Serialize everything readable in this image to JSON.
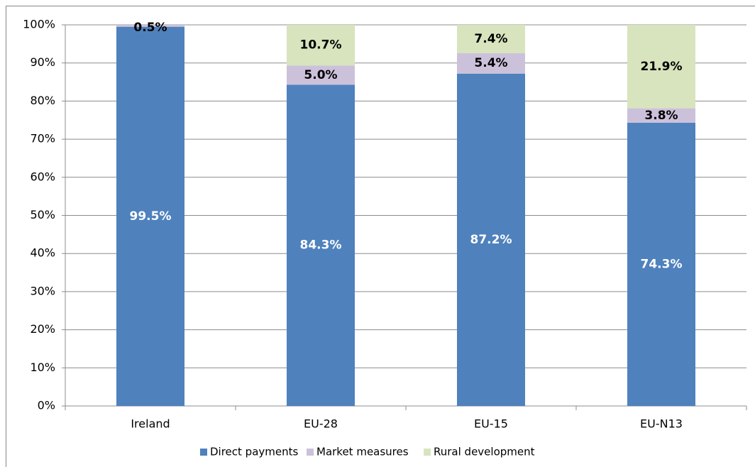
{
  "chart_data": {
    "type": "stacked_bar",
    "categories": [
      "Ireland",
      "EU-28",
      "EU-15",
      "EU-N13"
    ],
    "series": [
      {
        "name": "Direct payments",
        "color": "#4f81bd",
        "label_color": "#ffffff",
        "values": [
          99.5,
          84.3,
          87.2,
          74.3
        ],
        "value_labels": [
          "99.5%",
          "84.3%",
          "87.2%",
          "74.3%"
        ]
      },
      {
        "name": "Market measures",
        "color": "#ccc1da",
        "label_color": "#000000",
        "values": [
          0.5,
          5.0,
          5.4,
          3.8
        ],
        "value_labels": [
          "0.5%",
          "5.0%",
          "5.4%",
          "3.8%"
        ]
      },
      {
        "name": "Rural development",
        "color": "#d7e4bd",
        "label_color": "#000000",
        "values": [
          null,
          10.7,
          7.4,
          21.9
        ],
        "value_labels": [
          null,
          "10.7%",
          "7.4%",
          "21.9%"
        ]
      }
    ],
    "ylim": [
      0,
      100
    ],
    "yticks": [
      {
        "value": 0,
        "label": "0%"
      },
      {
        "value": 10,
        "label": "10%"
      },
      {
        "value": 20,
        "label": "20%"
      },
      {
        "value": 30,
        "label": "30%"
      },
      {
        "value": 40,
        "label": "40%"
      },
      {
        "value": 50,
        "label": "50%"
      },
      {
        "value": 60,
        "label": "60%"
      },
      {
        "value": 70,
        "label": "70%"
      },
      {
        "value": 80,
        "label": "80%"
      },
      {
        "value": 90,
        "label": "90%"
      },
      {
        "value": 100,
        "label": "100%"
      }
    ],
    "grid": true,
    "legend": "bottom"
  }
}
